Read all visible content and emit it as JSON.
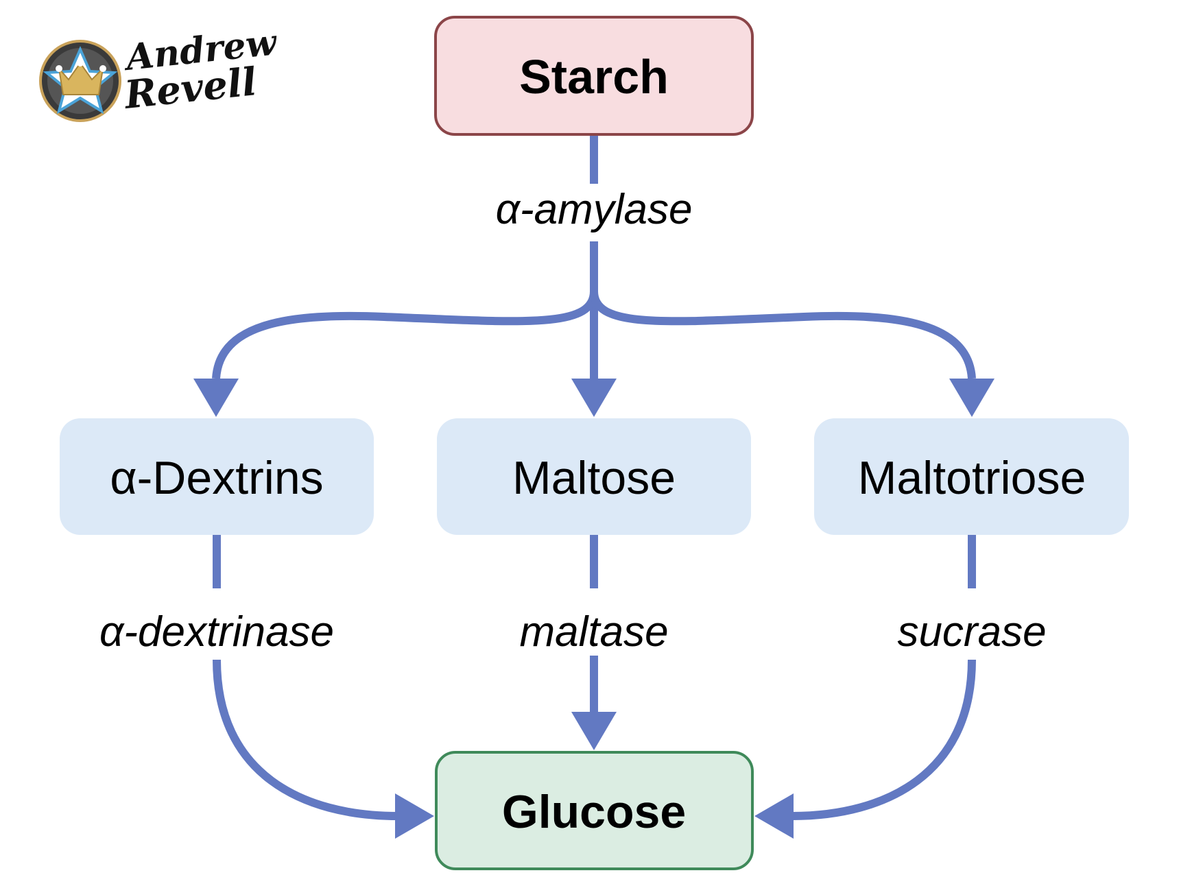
{
  "logo": {
    "line1": "Andrew",
    "line2": "Revell"
  },
  "nodes": {
    "starch": "Starch",
    "dextrins": "α-Dextrins",
    "maltose": "Maltose",
    "maltotriose": "Maltotriose",
    "glucose": "Glucose"
  },
  "enzymes": {
    "amylase": "α-amylase",
    "dextrinase": "α-dextrinase",
    "maltase": "maltase",
    "sucrase": "sucrase"
  },
  "colors": {
    "arrow": "#6279c2",
    "starch_fill": "#f8dde0",
    "starch_border": "#8b4548",
    "intermediate_fill": "#dce9f7",
    "glucose_fill": "#dbede2",
    "glucose_border": "#3f8a5a"
  },
  "icons": {
    "logo": "crown-star-badge-icon"
  }
}
